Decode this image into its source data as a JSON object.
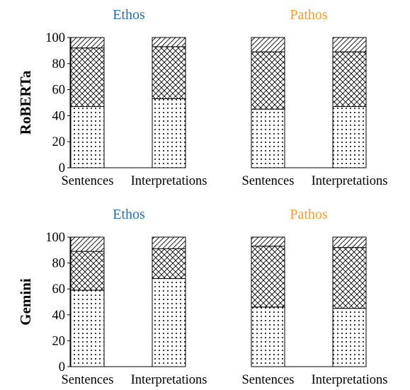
{
  "colors": {
    "ethos": "#1f6fbf",
    "pathos": "#ff9a2e",
    "axis": "#000000",
    "bar_fill": "#ffffff"
  },
  "legend": null,
  "chart_data": {
    "type": "bar",
    "stacked": true,
    "layout": "2x2 grid of panels; rows share model, columns share category",
    "rows": [
      "RoBERTa",
      "Gemini"
    ],
    "columns": [
      "Ethos",
      "Pathos"
    ],
    "categories": [
      "Sentences",
      "Interpretations"
    ],
    "ylim": [
      0,
      100
    ],
    "yticks": [
      0,
      20,
      40,
      60,
      80,
      100
    ],
    "grid": false,
    "segment_patterns": [
      "dots",
      "crosshatch",
      "diagonal"
    ],
    "panels": [
      {
        "row_label": "RoBERTa",
        "title": "Ethos",
        "series": [
          {
            "pattern": "dots",
            "values": [
              47,
              53
            ]
          },
          {
            "pattern": "crosshatch",
            "values": [
              45,
              40
            ]
          },
          {
            "pattern": "diagonal",
            "values": [
              8,
              7
            ]
          }
        ]
      },
      {
        "row_label": "RoBERTa",
        "title": "Pathos",
        "series": [
          {
            "pattern": "dots",
            "values": [
              45,
              47
            ]
          },
          {
            "pattern": "crosshatch",
            "values": [
              44,
              42
            ]
          },
          {
            "pattern": "diagonal",
            "values": [
              11,
              11
            ]
          }
        ]
      },
      {
        "row_label": "Gemini",
        "title": "Ethos",
        "series": [
          {
            "pattern": "dots",
            "values": [
              59,
              68
            ]
          },
          {
            "pattern": "crosshatch",
            "values": [
              30,
              23
            ]
          },
          {
            "pattern": "diagonal",
            "values": [
              11,
              9
            ]
          }
        ]
      },
      {
        "row_label": "Gemini",
        "title": "Pathos",
        "series": [
          {
            "pattern": "dots",
            "values": [
              46,
              45
            ]
          },
          {
            "pattern": "crosshatch",
            "values": [
              47,
              47
            ]
          },
          {
            "pattern": "diagonal",
            "values": [
              7,
              8
            ]
          }
        ]
      }
    ]
  }
}
